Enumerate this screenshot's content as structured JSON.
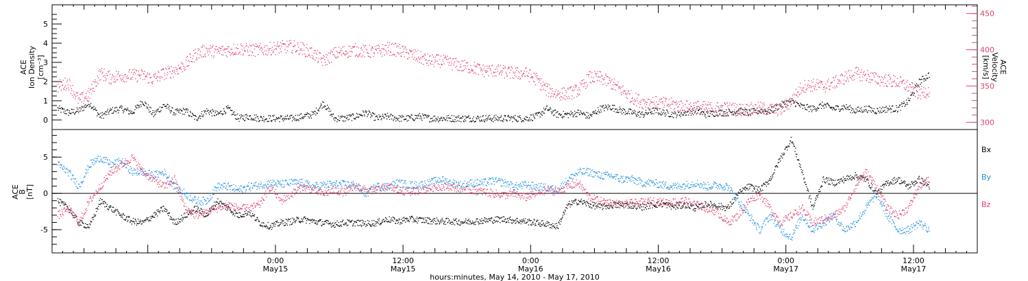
{
  "colors": {
    "black": "#000000",
    "pink": "#e0406a",
    "blue": "#1f8fe0"
  },
  "xaxis": {
    "title": "hours:minutes, May 14, 2010 - May 17, 2010",
    "range_hours": [
      -21,
      66
    ],
    "ticks": [
      {
        "hour": 0,
        "time": "0:00",
        "date": "May15"
      },
      {
        "hour": 12,
        "time": "12:00",
        "date": "May15"
      },
      {
        "hour": 24,
        "time": "0:00",
        "date": "May16"
      },
      {
        "hour": 36,
        "time": "12:00",
        "date": "May16"
      },
      {
        "hour": 48,
        "time": "0:00",
        "date": "May17"
      },
      {
        "hour": 60,
        "time": "12:00",
        "date": "May17"
      }
    ]
  },
  "chart_data": [
    {
      "type": "scatter",
      "panel": "top",
      "ylabel_left": [
        "ACE",
        "Ion Density",
        "[cm⁻³]"
      ],
      "ylabel_right": [
        "ACE",
        "Velocity",
        "[km/s]"
      ],
      "ylim_left": [
        -0.5,
        6.0
      ],
      "ylim_right": [
        290,
        462
      ],
      "yticks_left": [
        "0",
        "1",
        "2",
        "3",
        "4",
        "5"
      ],
      "yticks_right": [
        "300",
        "350",
        "400",
        "450"
      ],
      "series": [
        {
          "color": "#000000",
          "axis": "left",
          "x": [
            -20.5,
            -19.5,
            -18.5,
            -17.5,
            -16.5,
            -15.5,
            -14.5,
            -13.5,
            -12.5,
            -11.5,
            -10.5,
            -9.5,
            -8.5,
            -7.5,
            -6.5,
            -5.5,
            -4.5,
            -3.5,
            -2.5,
            -1.5,
            -0.5,
            0.5,
            1.5,
            2.5,
            3.5,
            4.5,
            5.5,
            6.5,
            7.5,
            8.5,
            9.5,
            10.5,
            11.5,
            12.5,
            13.5,
            14.5,
            15.5,
            16.5,
            17.5,
            18.5,
            19.5,
            20.5,
            21.5,
            22.5,
            23.5,
            24.5,
            25.5,
            26.5,
            27.5,
            28.5,
            29.5,
            30.5,
            31.5,
            32.5,
            33.5,
            34.5,
            35.5,
            36.5,
            37.5,
            38.5,
            39.5,
            40.5,
            41.5,
            42.5,
            43.5,
            44.5,
            45.5,
            46.5,
            47.5,
            48.5,
            49.5,
            50.5,
            51.5,
            52.5,
            53.5,
            54.5,
            55.5,
            56.5,
            57.5,
            58.5,
            59.5,
            60.5,
            61.5
          ],
          "y": [
            0.6,
            0.4,
            0.5,
            0.9,
            0.2,
            0.5,
            0.6,
            0.4,
            1.0,
            0.3,
            0.8,
            0.4,
            0.5,
            0.1,
            0.5,
            0.3,
            0.6,
            0.1,
            0.2,
            0.1,
            0.1,
            0.1,
            0.1,
            0.2,
            0.3,
            0.9,
            0.1,
            0.1,
            0.2,
            0.4,
            0.1,
            0.2,
            0.1,
            0.1,
            0.2,
            0.1,
            0.1,
            0.1,
            0.1,
            0.1,
            0.1,
            0.1,
            0.1,
            0.1,
            0.1,
            0.2,
            0.6,
            0.3,
            0.3,
            0.4,
            0.2,
            0.6,
            0.7,
            0.5,
            0.4,
            0.3,
            0.5,
            0.4,
            0.3,
            0.4,
            0.5,
            0.3,
            0.4,
            0.4,
            0.5,
            0.4,
            0.5,
            0.5,
            0.8,
            1.0,
            0.7,
            0.6,
            0.8,
            0.6,
            0.7,
            0.5,
            0.6,
            0.5,
            0.6,
            0.6,
            1.0,
            2.0,
            2.4
          ]
        },
        {
          "color": "#e0406a",
          "axis": "right",
          "x": [
            -20.5,
            -19.5,
            -18.5,
            -17.5,
            -16.5,
            -15.5,
            -14.5,
            -13.5,
            -12.5,
            -11.5,
            -10.5,
            -9.5,
            -8.5,
            -7.5,
            -6.5,
            -5.5,
            -4.5,
            -3.5,
            -2.5,
            -1.5,
            -0.5,
            0.5,
            1.5,
            2.5,
            3.5,
            4.5,
            5.5,
            6.5,
            7.5,
            8.5,
            9.5,
            10.5,
            11.5,
            12.5,
            13.5,
            14.5,
            15.5,
            16.5,
            17.5,
            18.5,
            19.5,
            20.5,
            21.5,
            22.5,
            23.5,
            24.5,
            25.5,
            26.5,
            27.5,
            28.5,
            29.5,
            30.5,
            31.5,
            32.5,
            33.5,
            34.5,
            35.5,
            36.5,
            37.5,
            38.5,
            39.5,
            40.5,
            41.5,
            42.5,
            43.5,
            44.5,
            45.5,
            46.5,
            47.5,
            48.5,
            49.5,
            50.5,
            51.5,
            52.5,
            53.5,
            54.5,
            55.5,
            56.5,
            57.5,
            58.5,
            59.5,
            60.5,
            61.5
          ],
          "y": [
            350,
            355,
            330,
            340,
            368,
            362,
            365,
            365,
            365,
            360,
            368,
            372,
            380,
            395,
            400,
            398,
            400,
            402,
            400,
            400,
            402,
            404,
            405,
            402,
            395,
            385,
            395,
            398,
            400,
            398,
            398,
            402,
            400,
            395,
            390,
            385,
            385,
            382,
            378,
            376,
            372,
            372,
            370,
            368,
            368,
            360,
            345,
            340,
            340,
            345,
            362,
            362,
            355,
            345,
            335,
            328,
            328,
            326,
            325,
            322,
            322,
            320,
            320,
            320,
            318,
            318,
            320,
            318,
            318,
            330,
            350,
            352,
            350,
            355,
            362,
            368,
            365,
            360,
            358,
            356,
            350,
            340,
            345
          ]
        }
      ]
    },
    {
      "type": "scatter",
      "panel": "bottom",
      "ylabel_left": [
        "ACE",
        "B",
        "[nT]"
      ],
      "ylim": [
        -8.2,
        8.8
      ],
      "yticks": [
        "-5",
        "0",
        "5"
      ],
      "zero_line": true,
      "legend": [
        "Bx",
        "By",
        "Bz"
      ],
      "series": [
        {
          "name": "Bx",
          "color": "#000000",
          "x": [
            -20.5,
            -19.5,
            -18.5,
            -17.5,
            -16.5,
            -15.5,
            -14.5,
            -13.5,
            -12.5,
            -11.5,
            -10.5,
            -9.5,
            -8.5,
            -7.5,
            -6.5,
            -5.5,
            -4.5,
            -3.5,
            -2.5,
            -1.5,
            -0.5,
            0.5,
            1.5,
            2.5,
            3.5,
            4.5,
            5.5,
            6.5,
            7.5,
            8.5,
            9.5,
            10.5,
            11.5,
            12.5,
            13.5,
            14.5,
            15.5,
            16.5,
            17.5,
            18.5,
            19.5,
            20.5,
            21.5,
            22.5,
            23.5,
            24.5,
            25.5,
            26.5,
            27.5,
            28.5,
            29.5,
            30.5,
            31.5,
            32.5,
            33.5,
            34.5,
            35.5,
            36.5,
            37.5,
            38.5,
            39.5,
            40.5,
            41.5,
            42.5,
            43.5,
            44.5,
            45.5,
            46.5,
            47.5,
            48.5,
            49.5,
            50.5,
            51.5,
            52.5,
            53.5,
            54.5,
            55.5,
            56.5,
            57.5,
            58.5,
            59.5,
            60.5,
            61.5
          ],
          "y": [
            -1,
            -2,
            -4,
            -4.5,
            -1,
            -2,
            -3,
            -3.8,
            -4,
            -3,
            -2,
            -4,
            -3,
            -2,
            -3,
            -1,
            -2,
            -3,
            -2.5,
            -4,
            -4.5,
            -4,
            -3.8,
            -3.5,
            -3.8,
            -4,
            -4.2,
            -4,
            -4,
            -4.1,
            -4,
            -3.5,
            -3.8,
            -3.5,
            -3.6,
            -3.7,
            -3.8,
            -3.8,
            -3.9,
            -3.8,
            -3.7,
            -3.6,
            -3.5,
            -3.7,
            -3.8,
            -4,
            -4.2,
            -4.5,
            -1.5,
            -1,
            -1.5,
            -1.8,
            -1.6,
            -1.5,
            -1.6,
            -1.8,
            -1.5,
            -1.4,
            -1.8,
            -1.5,
            -2.0,
            -1.4,
            -1.6,
            -2,
            0,
            1,
            0.5,
            2,
            5,
            7.5,
            3,
            -2,
            2,
            1.5,
            2,
            2.5,
            2,
            0,
            1.5,
            2,
            1,
            2,
            1
          ]
        },
        {
          "name": "By",
          "color": "#1f8fe0",
          "x": [
            -20.5,
            -19.5,
            -18.5,
            -17.5,
            -16.5,
            -15.5,
            -14.5,
            -13.5,
            -12.5,
            -11.5,
            -10.5,
            -9.5,
            -8.5,
            -7.5,
            -6.5,
            -5.5,
            -4.5,
            -3.5,
            -2.5,
            -1.5,
            -0.5,
            0.5,
            1.5,
            2.5,
            3.5,
            4.5,
            5.5,
            6.5,
            7.5,
            8.5,
            9.5,
            10.5,
            11.5,
            12.5,
            13.5,
            14.5,
            15.5,
            16.5,
            17.5,
            18.5,
            19.5,
            20.5,
            21.5,
            22.5,
            23.5,
            24.5,
            25.5,
            26.5,
            27.5,
            28.5,
            29.5,
            30.5,
            31.5,
            32.5,
            33.5,
            34.5,
            35.5,
            36.5,
            37.5,
            38.5,
            39.5,
            40.5,
            41.5,
            42.5,
            43.5,
            44.5,
            45.5,
            46.5,
            47.5,
            48.5,
            49.5,
            50.5,
            51.5,
            52.5,
            53.5,
            54.5,
            55.5,
            56.5,
            57.5,
            58.5,
            59.5,
            60.5,
            61.5
          ],
          "y": [
            4,
            3,
            1,
            4,
            5,
            4,
            4.5,
            3,
            3,
            2.5,
            3,
            1,
            0,
            -1,
            -1,
            1,
            1,
            0.5,
            1,
            1.2,
            1.5,
            1.3,
            1.5,
            1.5,
            1.0,
            1.2,
            1.3,
            1.3,
            1.2,
            0,
            1,
            1,
            1.5,
            1.2,
            1.2,
            1.5,
            2,
            1.5,
            1.2,
            1.5,
            1.5,
            1.8,
            1.5,
            1,
            1.2,
            1,
            0.8,
            0.5,
            2,
            3,
            3,
            2.5,
            2.5,
            2,
            2,
            1.5,
            1.5,
            1.2,
            1,
            1.2,
            1.5,
            1,
            1.2,
            1,
            -1,
            -3,
            -5,
            -3,
            -5,
            -6,
            -3,
            -5,
            -4,
            -3,
            -5,
            -4,
            -2,
            0,
            -3,
            -5,
            -5,
            -4,
            -5
          ]
        },
        {
          "name": "Bz",
          "color": "#e0406a",
          "x": [
            -20.5,
            -19.5,
            -18.5,
            -17.5,
            -16.5,
            -15.5,
            -14.5,
            -13.5,
            -12.5,
            -11.5,
            -10.5,
            -9.5,
            -8.5,
            -7.5,
            -6.5,
            -5.5,
            -4.5,
            -3.5,
            -2.5,
            -1.5,
            -0.5,
            0.5,
            1.5,
            2.5,
            3.5,
            4.5,
            5.5,
            6.5,
            7.5,
            8.5,
            9.5,
            10.5,
            11.5,
            12.5,
            13.5,
            14.5,
            15.5,
            16.5,
            17.5,
            18.5,
            19.5,
            20.5,
            21.5,
            22.5,
            23.5,
            24.5,
            25.5,
            26.5,
            27.5,
            28.5,
            29.5,
            30.5,
            31.5,
            32.5,
            33.5,
            34.5,
            35.5,
            36.5,
            37.5,
            38.5,
            39.5,
            40.5,
            41.5,
            42.5,
            43.5,
            44.5,
            45.5,
            46.5,
            47.5,
            48.5,
            49.5,
            50.5,
            51.5,
            52.5,
            53.5,
            54.5,
            55.5,
            56.5,
            57.5,
            58.5,
            59.5,
            60.5,
            61.5
          ],
          "y": [
            -3,
            -2,
            -4,
            -1,
            1,
            3,
            4,
            5,
            3,
            2,
            1,
            2,
            -2,
            -3,
            -2.5,
            -2,
            -1.5,
            -2,
            -2,
            -1.5,
            1,
            -1,
            0,
            1,
            0.5,
            0,
            0.5,
            0.2,
            1,
            0.5,
            0.5,
            1,
            0.5,
            0.2,
            0.5,
            0.8,
            1,
            1,
            0.6,
            0.5,
            0.3,
            0,
            -0.2,
            0,
            -0.5,
            0,
            0.5,
            0.3,
            1,
            1.5,
            -0.5,
            -1,
            -1.2,
            -1.5,
            -1.3,
            -1.2,
            -1,
            -1.2,
            -1.1,
            -1,
            -1.5,
            -2,
            -2.5,
            -4,
            -3,
            -1,
            0,
            -2,
            -4,
            -3,
            -2,
            -4,
            -3.5,
            -3,
            -2,
            1,
            3,
            1,
            -2,
            -3,
            -2,
            1,
            2
          ]
        }
      ]
    }
  ]
}
